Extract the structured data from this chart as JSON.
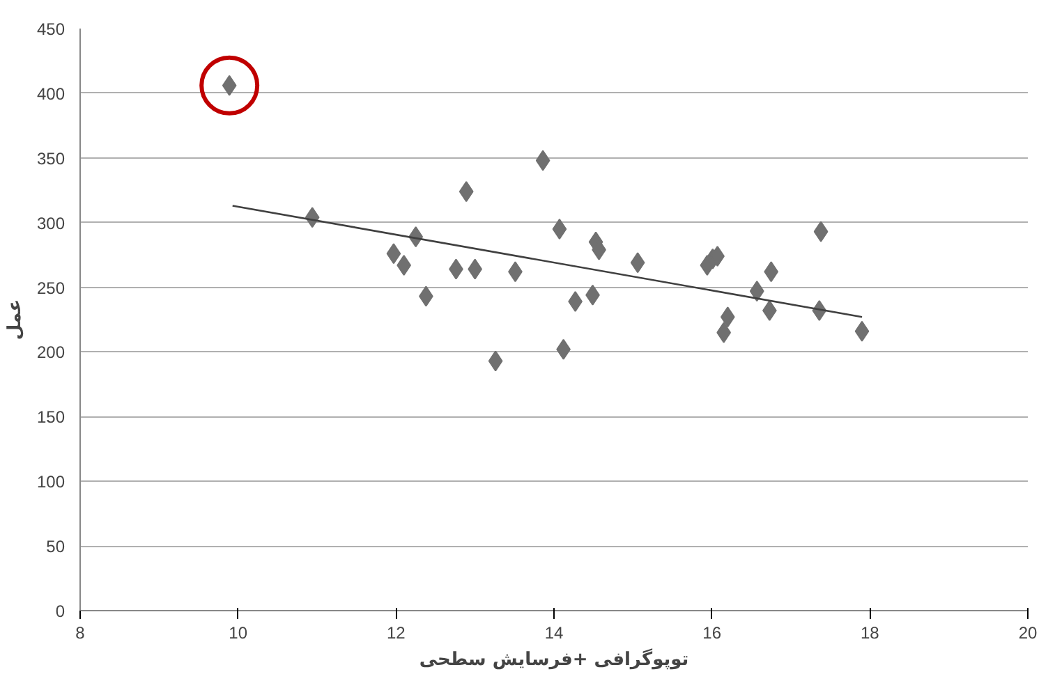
{
  "chart_data": {
    "type": "scatter",
    "xlabel": "توپوگرافی +فرسایش سطحی",
    "ylabel": "عمل",
    "xlim": [
      8,
      20
    ],
    "xticks": [
      8,
      10,
      12,
      14,
      16,
      18,
      20
    ],
    "ylim": [
      0,
      450
    ],
    "yticks": [
      0,
      50,
      100,
      150,
      200,
      250,
      300,
      350,
      400,
      450
    ],
    "grid": "y",
    "marker": "diamond",
    "series": [
      {
        "color": "#707070",
        "x": [
          9.89,
          10.94,
          11.97,
          12.1,
          12.25,
          12.38,
          12.89,
          12.76,
          13.0,
          13.26,
          13.51,
          13.86,
          14.07,
          14.12,
          14.27,
          14.49,
          14.53,
          14.57,
          15.06,
          15.94,
          16.01,
          16.07,
          16.15,
          16.2,
          16.57,
          16.73,
          16.75,
          17.38,
          17.36,
          17.9
        ],
        "values": [
          406,
          304,
          276,
          267,
          289,
          243,
          324,
          264,
          264,
          193,
          262,
          348,
          295,
          202,
          239,
          244,
          285,
          279,
          269,
          267,
          272,
          274,
          215,
          227,
          247,
          232,
          262,
          293,
          232,
          216
        ]
      },
      {
        "type": "line",
        "color": "#404040",
        "marker": "none",
        "x": [
          9.93,
          17.9
        ],
        "values": [
          313,
          227
        ]
      },
      {
        "type": "scatter",
        "color": "#c00000",
        "marker": "circle",
        "x": [
          9.89
        ],
        "values": [
          406
        ]
      }
    ]
  }
}
